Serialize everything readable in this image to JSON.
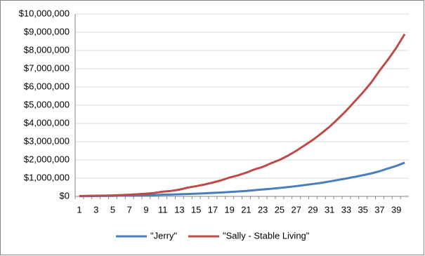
{
  "chart_data": {
    "type": "line",
    "categories": [
      "1",
      null,
      "3",
      null,
      "5",
      null,
      "7",
      null,
      "9",
      null,
      "11",
      null,
      "13",
      null,
      "15",
      null,
      "17",
      null,
      "19",
      null,
      "21",
      null,
      "23",
      null,
      "25",
      null,
      "27",
      null,
      "29",
      null,
      "31",
      null,
      "33",
      null,
      "35",
      null,
      "37",
      null,
      "39",
      null
    ],
    "series": [
      {
        "name": "\"Jerry\"",
        "color": "#4a7ebb",
        "values": [
          10000,
          15000,
          20000,
          25000,
          30000,
          40000,
          45000,
          55000,
          65000,
          75000,
          90000,
          100000,
          115000,
          130000,
          150000,
          170000,
          190000,
          210000,
          240000,
          270000,
          300000,
          340000,
          380000,
          420000,
          460000,
          510000,
          560000,
          620000,
          680000,
          740000,
          820000,
          900000,
          980000,
          1070000,
          1160000,
          1260000,
          1380000,
          1530000,
          1670000,
          1850000
        ]
      },
      {
        "name": "\"Sally - Stable Living\"",
        "color": "#be4b48",
        "values": [
          20000,
          30000,
          40000,
          45000,
          55000,
          70000,
          90000,
          120000,
          150000,
          190000,
          260000,
          300000,
          370000,
          480000,
          560000,
          650000,
          760000,
          880000,
          1030000,
          1150000,
          1300000,
          1480000,
          1620000,
          1820000,
          2000000,
          2230000,
          2500000,
          2800000,
          3100000,
          3450000,
          3820000,
          4250000,
          4700000,
          5200000,
          5700000,
          6250000,
          6900000,
          7500000,
          8150000,
          8900000
        ]
      }
    ],
    "ylim": [
      0,
      10000000
    ],
    "yticks": [
      {
        "value": 0,
        "label": "$0"
      },
      {
        "value": 1000000,
        "label": "$1,000,000"
      },
      {
        "value": 2000000,
        "label": "$2,000,000"
      },
      {
        "value": 3000000,
        "label": "$3,000,000"
      },
      {
        "value": 4000000,
        "label": "$4,000,000"
      },
      {
        "value": 5000000,
        "label": "$5,000,000"
      },
      {
        "value": 6000000,
        "label": "$6,000,000"
      },
      {
        "value": 7000000,
        "label": "$7,000,000"
      },
      {
        "value": 8000000,
        "label": "$8,000,000"
      },
      {
        "value": 9000000,
        "label": "$9,000,000"
      },
      {
        "value": 10000000,
        "label": "$10,000,000"
      }
    ],
    "grid": true,
    "legend": "bottom"
  }
}
